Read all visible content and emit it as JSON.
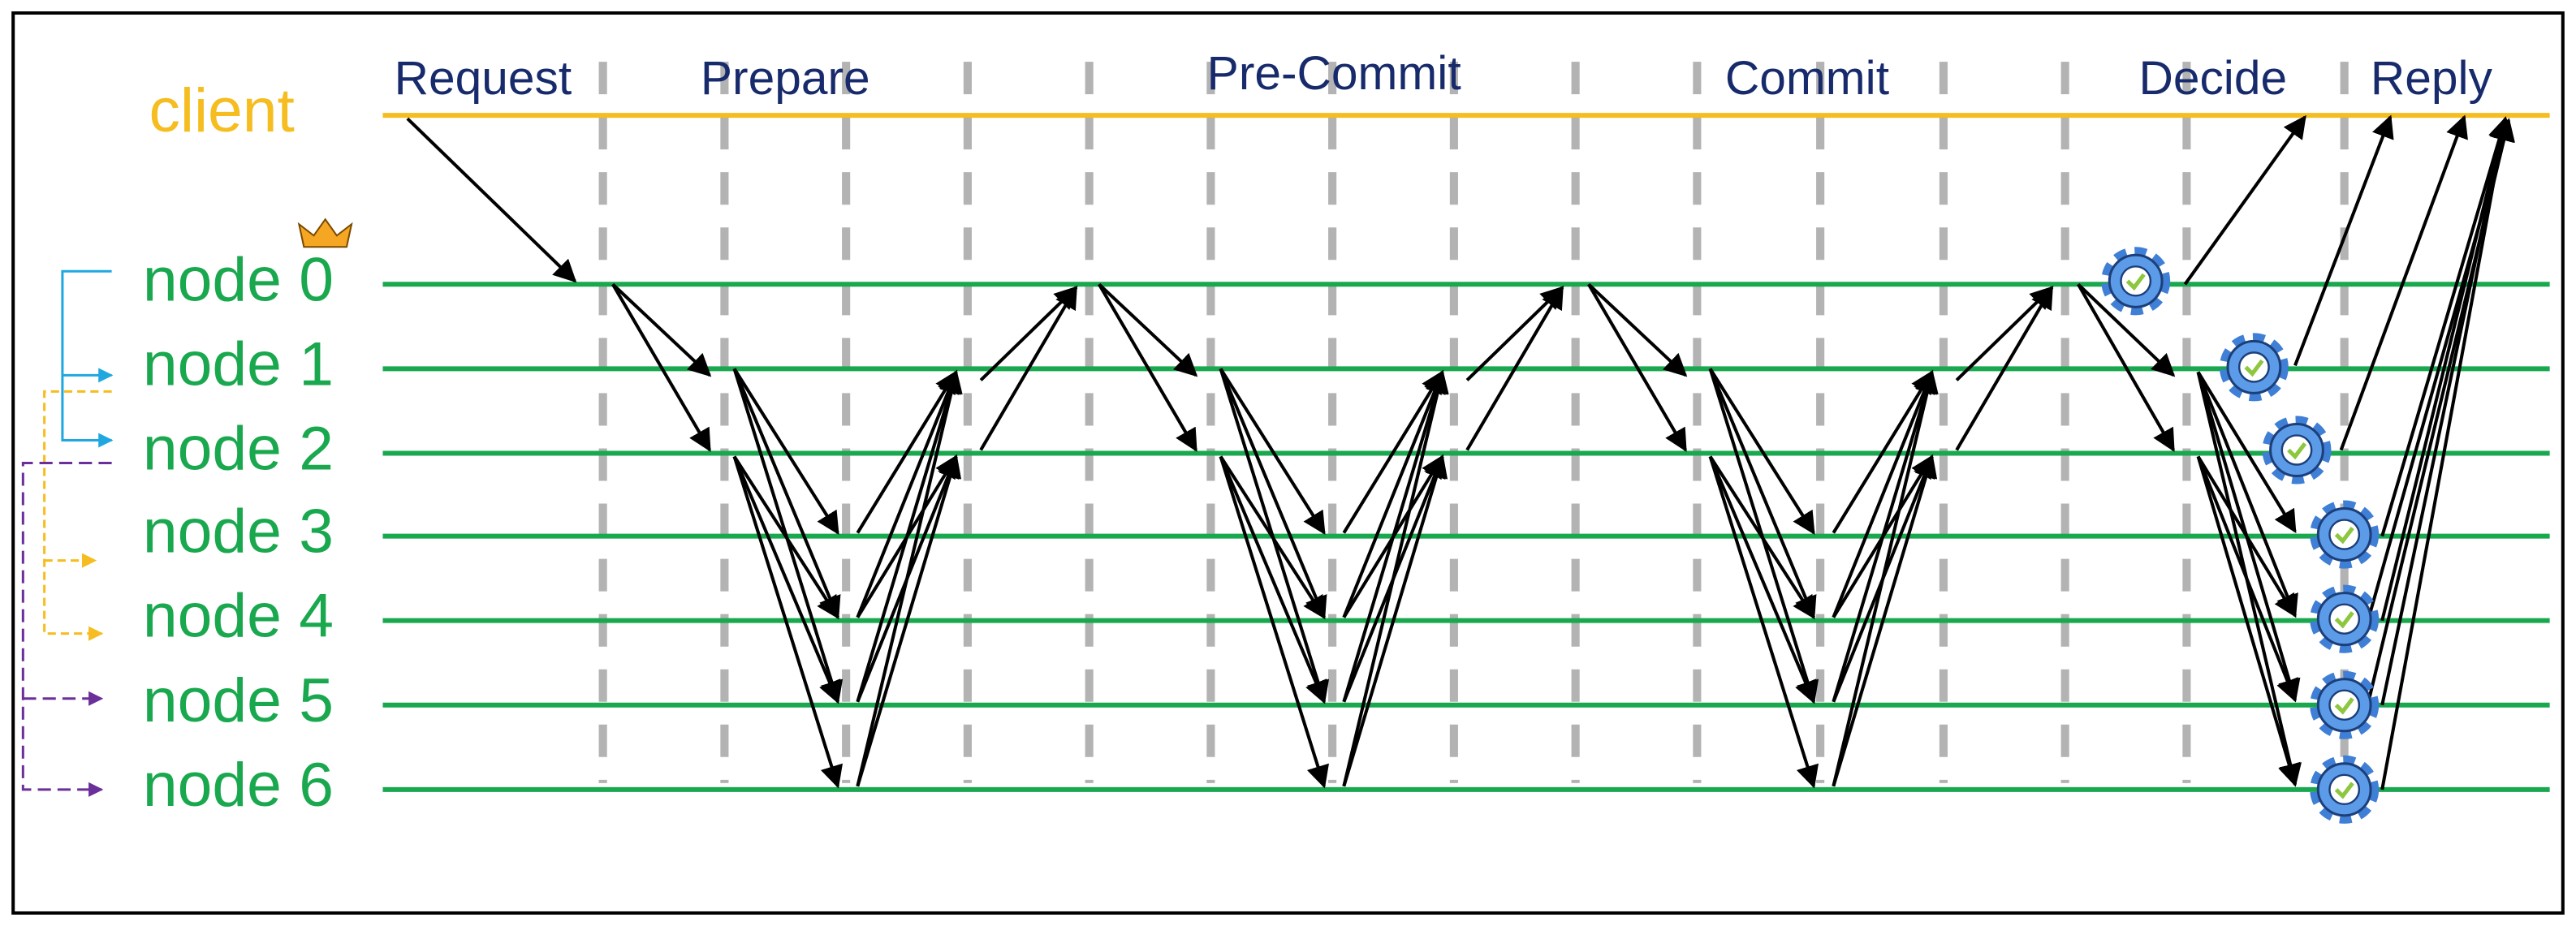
{
  "client": {
    "label": "client"
  },
  "nodes": [
    {
      "label": "node 0"
    },
    {
      "label": "node 1"
    },
    {
      "label": "node 2"
    },
    {
      "label": "node 3"
    },
    {
      "label": "node 4"
    },
    {
      "label": "node 5"
    },
    {
      "label": "node 6"
    }
  ],
  "phases": [
    "Request",
    "Prepare",
    "Pre-Commit",
    "Commit",
    "Decide",
    "Reply"
  ]
}
